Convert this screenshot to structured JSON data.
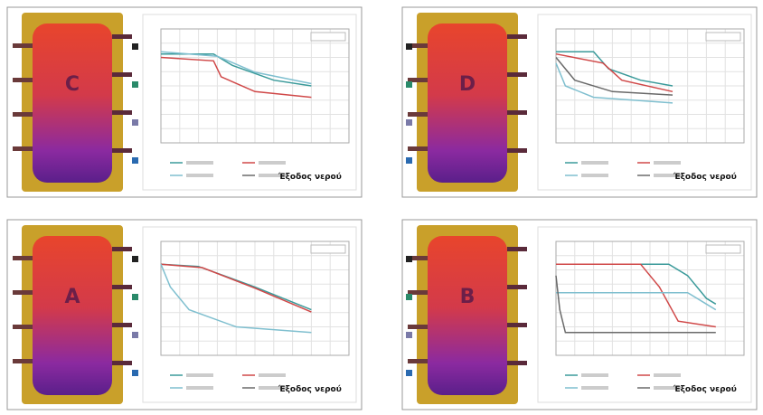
{
  "panels": [
    {
      "label": "C",
      "caption": "Έξοδος νερού"
    },
    {
      "label": "D",
      "caption": "Έξοδος νερού"
    },
    {
      "label": "A",
      "caption": "Έξοδος νερού"
    },
    {
      "label": "B",
      "caption": "Έξοδος νερού"
    }
  ]
}
